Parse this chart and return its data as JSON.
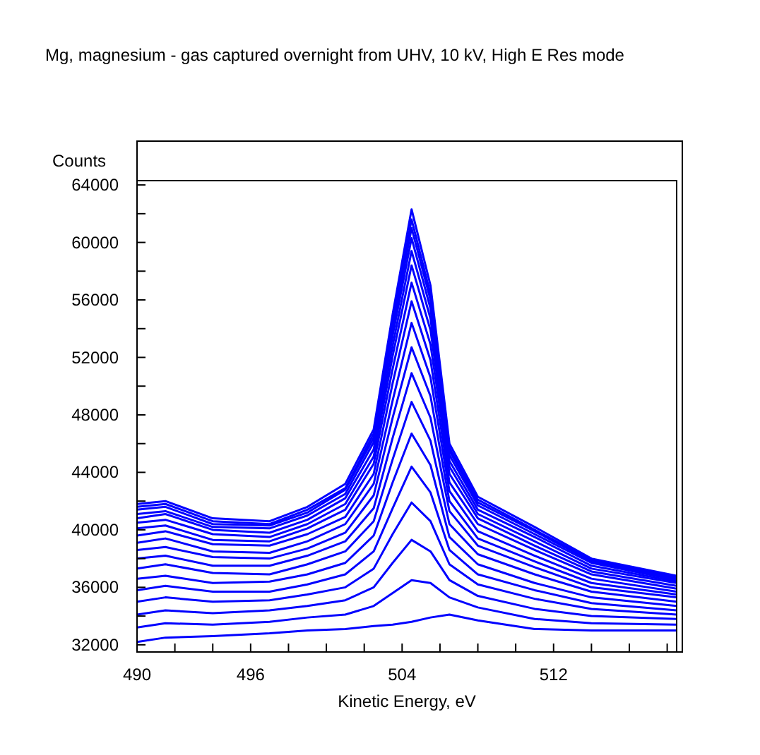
{
  "chart_data": {
    "type": "line",
    "title": "Mg, magnesium - gas captured overnight from UHV, 10 kV, High E Res mode",
    "xlabel": "Kinetic Energy, eV",
    "ylabel": "Counts",
    "x": [
      490,
      491.5,
      494,
      497,
      499,
      501,
      502.5,
      503.5,
      504.5,
      505.5,
      506.5,
      508,
      511,
      514,
      518.5
    ],
    "xlim": [
      490,
      518.5
    ],
    "xticks": [
      490,
      {
        "value": 492,
        "label": null
      },
      {
        "value": 494,
        "label": null
      },
      496,
      {
        "value": 498,
        "label": null
      },
      {
        "value": 500,
        "label": null
      },
      {
        "value": 502,
        "label": null
      },
      504,
      {
        "value": 506,
        "label": null
      },
      {
        "value": 508,
        "label": null
      },
      {
        "value": 510,
        "label": null
      },
      512,
      {
        "value": 514,
        "label": null
      },
      {
        "value": 516,
        "label": null
      },
      {
        "value": 518,
        "label": null
      }
    ],
    "ylim": [
      31500,
      64300
    ],
    "yticks": [
      32000,
      {
        "value": 34000,
        "label": null
      },
      36000,
      {
        "value": 38000,
        "label": null
      },
      40000,
      {
        "value": 42000,
        "label": null
      },
      44000,
      {
        "value": 46000,
        "label": null
      },
      48000,
      {
        "value": 50000,
        "label": null
      },
      52000,
      {
        "value": 54000,
        "label": null
      },
      56000,
      {
        "value": 58000,
        "label": null
      },
      60000,
      {
        "value": 62000,
        "label": null
      },
      64000
    ],
    "grid": false,
    "marker": "none",
    "line_style": "solid",
    "series": [
      {
        "color": "#0000ff",
        "values": [
          32200,
          32500,
          32600,
          32800,
          33000,
          33100,
          33300,
          33400,
          33600,
          33900,
          34100,
          33700,
          33100,
          33000,
          33000
        ]
      },
      {
        "color": "#0000ff",
        "values": [
          33200,
          33500,
          33400,
          33600,
          33900,
          34100,
          34700,
          35600,
          36500,
          36300,
          35300,
          34600,
          33800,
          33500,
          33400
        ]
      },
      {
        "color": "#0000ff",
        "values": [
          34100,
          34400,
          34200,
          34400,
          34700,
          35100,
          36000,
          37700,
          39300,
          38500,
          36500,
          35400,
          34500,
          34000,
          33800
        ]
      },
      {
        "color": "#0000ff",
        "values": [
          35000,
          35300,
          35000,
          35100,
          35500,
          36000,
          37300,
          39700,
          41900,
          40600,
          37600,
          36200,
          35200,
          34500,
          34100
        ]
      },
      {
        "color": "#0000ff",
        "values": [
          35800,
          36100,
          35700,
          35700,
          36200,
          36900,
          38500,
          41500,
          44400,
          42600,
          38600,
          36900,
          35800,
          34900,
          34400
        ]
      },
      {
        "color": "#0000ff",
        "values": [
          36600,
          36800,
          36300,
          36400,
          36900,
          37700,
          39600,
          43300,
          46700,
          44500,
          39500,
          37600,
          36300,
          35300,
          34700
        ]
      },
      {
        "color": "#0000ff",
        "values": [
          37300,
          37600,
          37000,
          36900,
          37600,
          38500,
          40600,
          44900,
          48900,
          46200,
          40400,
          38300,
          36900,
          35700,
          35000
        ]
      },
      {
        "color": "#0000ff",
        "values": [
          38000,
          38200,
          37500,
          37500,
          38200,
          39200,
          41500,
          46400,
          50900,
          47800,
          41300,
          38900,
          37400,
          36000,
          35300
        ]
      },
      {
        "color": "#0000ff",
        "values": [
          38600,
          38800,
          38100,
          38000,
          38700,
          39800,
          42400,
          47800,
          52700,
          49300,
          42000,
          39400,
          37800,
          36300,
          35500
        ]
      },
      {
        "color": "#0000ff",
        "values": [
          39100,
          39400,
          38500,
          38400,
          39200,
          40400,
          43200,
          49000,
          54400,
          50600,
          42700,
          39900,
          38200,
          36600,
          35700
        ]
      },
      {
        "color": "#0000ff",
        "values": [
          39600,
          39900,
          39000,
          38900,
          39700,
          40900,
          43900,
          50200,
          55900,
          51800,
          43300,
          40400,
          38600,
          36900,
          35900
        ]
      },
      {
        "color": "#0000ff",
        "values": [
          40100,
          40300,
          39300,
          39200,
          40100,
          41400,
          44600,
          51200,
          57200,
          52900,
          43900,
          40800,
          38900,
          37100,
          36100
        ]
      },
      {
        "color": "#0000ff",
        "values": [
          40500,
          40700,
          39700,
          39500,
          40400,
          41800,
          45100,
          52100,
          58400,
          53900,
          44400,
          41100,
          39200,
          37300,
          36300
        ]
      },
      {
        "color": "#0000ff",
        "values": [
          40800,
          41100,
          40000,
          39800,
          40700,
          42200,
          45600,
          52800,
          59400,
          54700,
          44800,
          41400,
          39500,
          37500,
          36400
        ]
      },
      {
        "color": "#0000ff",
        "values": [
          41100,
          41300,
          40200,
          40100,
          41000,
          42500,
          46100,
          53500,
          60300,
          55400,
          45200,
          41700,
          39700,
          37700,
          36500
        ]
      },
      {
        "color": "#0000ff",
        "values": [
          41400,
          41600,
          40400,
          40300,
          41200,
          42800,
          46400,
          54000,
          61000,
          56000,
          45500,
          41900,
          39900,
          37800,
          36600
        ]
      },
      {
        "color": "#0000ff",
        "values": [
          41600,
          41800,
          40600,
          40400,
          41400,
          42900,
          46700,
          54500,
          61600,
          56400,
          45700,
          42100,
          40000,
          37900,
          36700
        ]
      },
      {
        "color": "#0000ff",
        "values": [
          41800,
          42000,
          40800,
          40600,
          41600,
          43200,
          47000,
          55000,
          62300,
          57000,
          46000,
          42300,
          40200,
          38000,
          36800
        ]
      }
    ]
  }
}
